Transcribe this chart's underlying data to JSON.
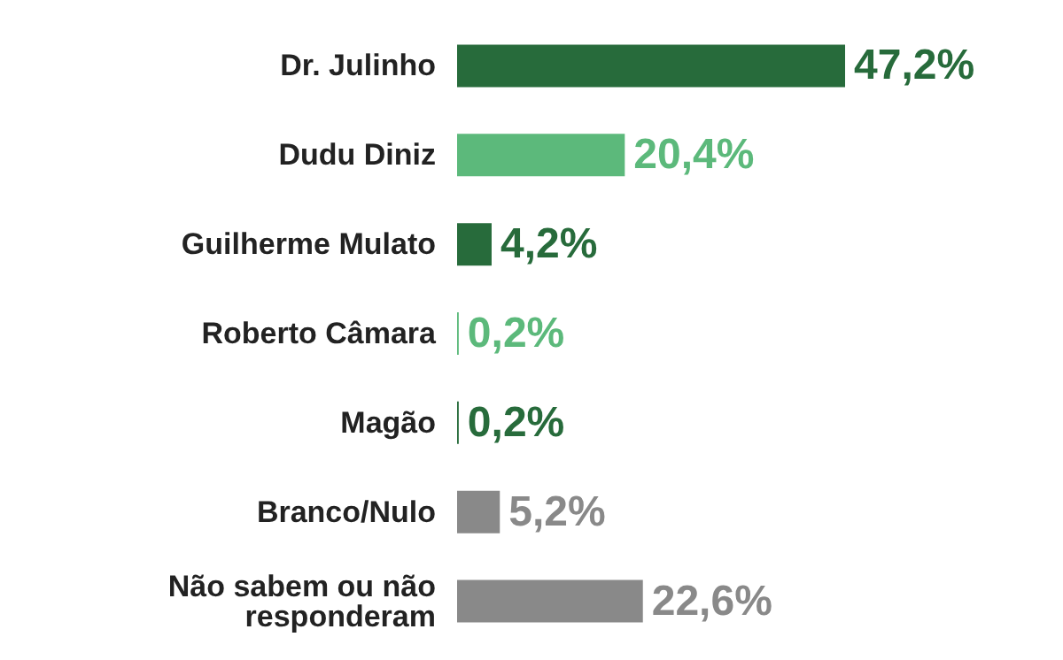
{
  "chart_data": {
    "type": "bar",
    "orientation": "horizontal",
    "categories": [
      "Dr. Julinho",
      "Dudu Diniz",
      "Guilherme Mulato",
      "Roberto Câmara",
      "Magão",
      "Branco/Nulo",
      "Não sabem ou não responderam"
    ],
    "values": [
      47.2,
      20.4,
      4.2,
      0.2,
      0.2,
      5.2,
      22.6
    ],
    "colors": [
      "#276b3b",
      "#5cb97b",
      "#276b3b",
      "#5cb97b",
      "#276b3b",
      "#898989",
      "#898989"
    ],
    "value_labels": [
      "47,2%",
      "20,4%",
      "4,2%",
      "0,2%",
      "0,2%",
      "5,2%",
      "22,6%"
    ]
  }
}
